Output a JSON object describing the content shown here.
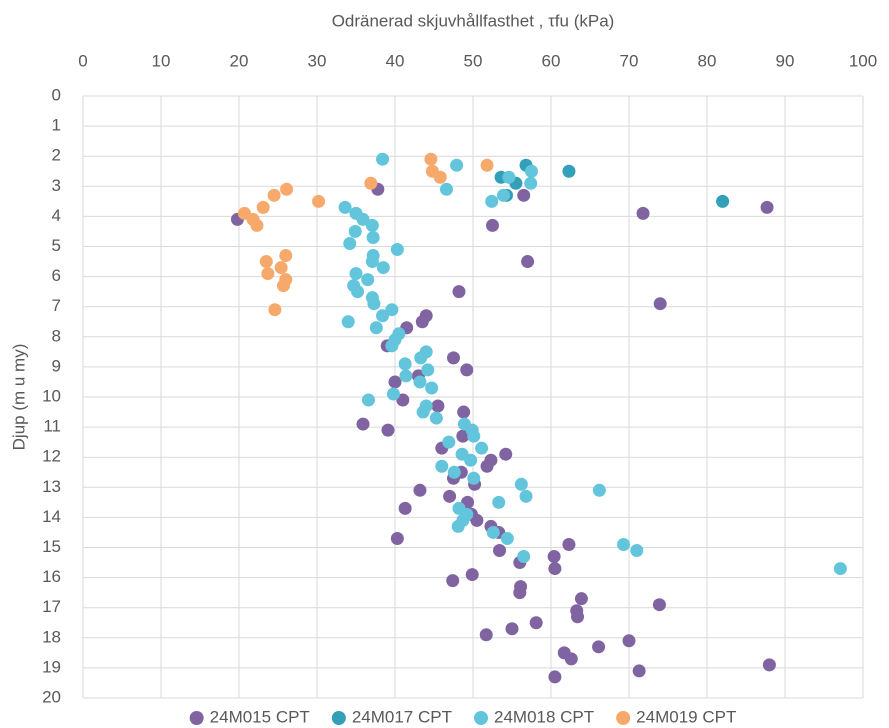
{
  "chart_data": {
    "type": "scatter",
    "x_label": "Odränerad skjuvhållfasthet , τfu (kPa)",
    "y_label": "Djup (m u my)",
    "xlim": [
      0,
      100
    ],
    "xticks": [
      0,
      10,
      20,
      30,
      40,
      50,
      60,
      70,
      80,
      90,
      100
    ],
    "ylim": [
      0,
      20
    ],
    "yticks": [
      0,
      1,
      2,
      3,
      4,
      5,
      6,
      7,
      8,
      9,
      10,
      11,
      12,
      13,
      14,
      15,
      16,
      17,
      18,
      19,
      20
    ],
    "y_inverted": true,
    "x_axis_top": true,
    "grid": true,
    "legend": "bottom",
    "series": [
      {
        "name": "24M015 CPT",
        "color": "#8064a2",
        "x": [
          37.8,
          56.5,
          19.8,
          52.5,
          71.8,
          87.7,
          57,
          48.2,
          74,
          44,
          43.5,
          41.5,
          39,
          47.5,
          49.2,
          43,
          40,
          41,
          45.5,
          48.8,
          35.9,
          39.1,
          48.7,
          46,
          54.2,
          52.3,
          51.8,
          48.5,
          47.5,
          50.2,
          43.2,
          47,
          49.3,
          41.3,
          49.8,
          50.5,
          52.3,
          53.3,
          40.3,
          62.3,
          53.4,
          60.4,
          56,
          60.5,
          49.9,
          47.4,
          56.1,
          56,
          63.9,
          73.9,
          63.3,
          63.4,
          58.1,
          55,
          51.7,
          70,
          66.1,
          61.7,
          62.6,
          88,
          71.3,
          60.5
        ],
        "y": [
          3.1,
          3.3,
          4.1,
          4.3,
          3.9,
          3.7,
          5.5,
          6.5,
          6.9,
          7.3,
          7.5,
          7.7,
          8.3,
          8.7,
          9.1,
          9.3,
          9.5,
          10.1,
          10.3,
          10.5,
          10.9,
          11.1,
          11.3,
          11.7,
          11.9,
          12.1,
          12.3,
          12.5,
          12.7,
          12.9,
          13.1,
          13.3,
          13.5,
          13.7,
          13.9,
          14.1,
          14.3,
          14.5,
          14.7,
          14.9,
          15.1,
          15.3,
          15.5,
          15.7,
          15.9,
          16.1,
          16.3,
          16.5,
          16.7,
          16.9,
          17.1,
          17.3,
          17.5,
          17.7,
          17.9,
          18.1,
          18.3,
          18.5,
          18.7,
          18.9,
          19.1,
          19.3
        ]
      },
      {
        "name": "24M017 CPT",
        "color": "#31a0b8",
        "x": [
          56.8,
          62.3,
          53.6,
          55.5,
          54.3,
          82
        ],
        "y": [
          2.3,
          2.5,
          2.7,
          2.9,
          3.3,
          3.5
        ]
      },
      {
        "name": "24M018 CPT",
        "color": "#62c5dc",
        "x": [
          38.4,
          47.9,
          57.5,
          54.6,
          57.4,
          46.6,
          53.9,
          52.4,
          33.6,
          35,
          35.9,
          37.1,
          34.9,
          37.2,
          34.2,
          40.3,
          37.2,
          37.1,
          38.5,
          35,
          36.5,
          34.7,
          35.2,
          37.1,
          37.3,
          39.6,
          38.4,
          34,
          37.6,
          40.5,
          40,
          39.6,
          44,
          43.3,
          41.3,
          44.2,
          41.4,
          43.2,
          44.7,
          39.8,
          36.6,
          44,
          43.6,
          45.3,
          48.9,
          49.9,
          50.1,
          46.9,
          51.1,
          48.6,
          49.7,
          46,
          47.6,
          50.1,
          56.2,
          66.2,
          56.8,
          53.3,
          48.2,
          49.2,
          48.7,
          48.1,
          52.6,
          54.4,
          69.3,
          71,
          56.5,
          97.1
        ],
        "y": [
          2.1,
          2.3,
          2.5,
          2.7,
          2.9,
          3.1,
          3.3,
          3.5,
          3.7,
          3.9,
          4.1,
          4.3,
          4.5,
          4.7,
          4.9,
          5.1,
          5.3,
          5.5,
          5.7,
          5.9,
          6.1,
          6.3,
          6.5,
          6.7,
          6.9,
          7.1,
          7.3,
          7.5,
          7.7,
          7.9,
          8.1,
          8.3,
          8.5,
          8.7,
          8.9,
          9.1,
          9.3,
          9.5,
          9.7,
          9.9,
          10.1,
          10.3,
          10.5,
          10.7,
          10.9,
          11.1,
          11.3,
          11.5,
          11.7,
          11.9,
          12.1,
          12.3,
          12.5,
          12.7,
          12.9,
          13.1,
          13.3,
          13.5,
          13.7,
          13.9,
          14.1,
          14.3,
          14.5,
          14.7,
          14.9,
          15.1,
          15.3,
          15.7
        ]
      },
      {
        "name": "24M019 CPT",
        "color": "#f6a96b",
        "x": [
          44.6,
          51.8,
          44.8,
          45.8,
          36.9,
          26.1,
          24.5,
          30.2,
          23.1,
          20.7,
          21.8,
          22.3,
          26,
          23.5,
          25.4,
          23.7,
          26,
          25.7,
          24.6
        ],
        "y": [
          2.1,
          2.3,
          2.5,
          2.7,
          2.9,
          3.1,
          3.3,
          3.5,
          3.7,
          3.9,
          4.1,
          4.3,
          5.3,
          5.5,
          5.7,
          5.9,
          6.1,
          6.3,
          7.1
        ]
      }
    ]
  }
}
